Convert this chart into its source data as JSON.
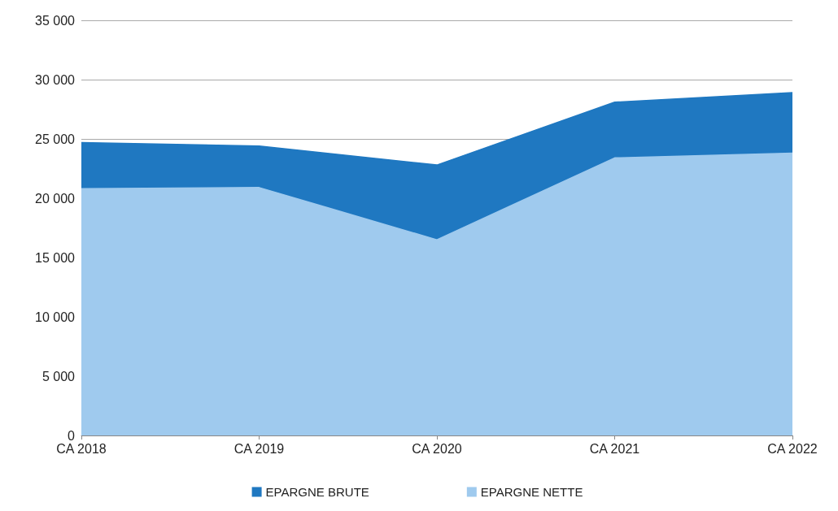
{
  "chart_data": {
    "type": "area",
    "categories": [
      "CA 2018",
      "CA 2019",
      "CA 2020",
      "CA 2021",
      "CA 2022"
    ],
    "series": [
      {
        "name": "EPARGNE BRUTE",
        "color": "#1f78c1",
        "values": [
          24700,
          24400,
          22800,
          28100,
          28900
        ]
      },
      {
        "name": "EPARGNE NETTE",
        "color": "#9fcaee",
        "values": [
          20800,
          20900,
          16500,
          23400,
          23800
        ]
      }
    ],
    "ylim": [
      0,
      35000
    ],
    "yticks": [
      0,
      {
        "value": 5000,
        "label": "5 000"
      },
      {
        "value": 10000,
        "label": "10 000"
      },
      {
        "value": 15000,
        "label": "15 000"
      },
      {
        "value": 20000,
        "label": "20 000"
      },
      {
        "value": 25000,
        "label": "25 000"
      },
      {
        "value": 30000,
        "label": "30 000"
      },
      {
        "value": 35000,
        "label": "35 000"
      }
    ],
    "grid": "y",
    "legend": "bottom"
  }
}
